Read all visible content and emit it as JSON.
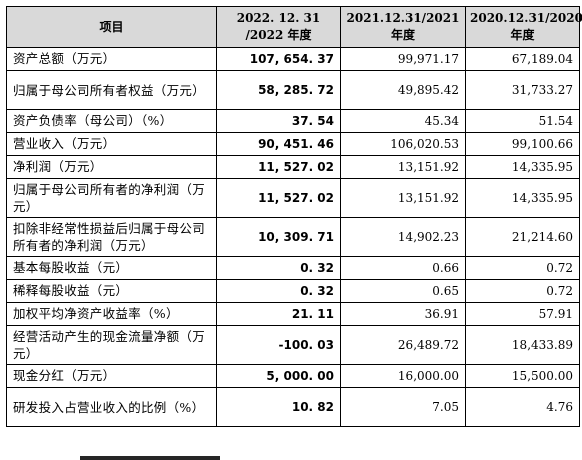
{
  "table": {
    "headers": {
      "item": "项目",
      "col2022": [
        "2022. 12. 31",
        "/2022 年度"
      ],
      "col2021": [
        "2021.12.31/2021",
        "年度"
      ],
      "col2020": [
        "2020.12.31/2020",
        "年度"
      ]
    },
    "rows": [
      {
        "label": "资产总额（万元）",
        "v2022": "107, 654. 37",
        "v2021": "99,971.17",
        "v2020": "67,189.04",
        "tall": false
      },
      {
        "label": "归属于母公司所有者权益（万元）",
        "v2022": "58, 285. 72",
        "v2021": "49,895.42",
        "v2020": "31,733.27",
        "tall": true
      },
      {
        "label": "资产负债率（母公司）（%）",
        "v2022": "37. 54",
        "v2021": "45.34",
        "v2020": "51.54",
        "tall": false
      },
      {
        "label": "营业收入（万元）",
        "v2022": "90, 451. 46",
        "v2021": "106,020.53",
        "v2020": "99,100.66",
        "tall": false
      },
      {
        "label": "净利润（万元）",
        "v2022": "11, 527. 02",
        "v2021": "13,151.92",
        "v2020": "14,335.95",
        "tall": false
      },
      {
        "label": "归属于母公司所有者的净利润（万元）",
        "v2022": "11, 527. 02",
        "v2021": "13,151.92",
        "v2020": "14,335.95",
        "tall": true
      },
      {
        "label": "扣除非经常性损益后归属于母公司所有者的净利润（万元）",
        "v2022": "10, 309. 71",
        "v2021": "14,902.23",
        "v2020": "21,214.60",
        "tall": true
      },
      {
        "label": "基本每股收益（元）",
        "v2022": "0. 32",
        "v2021": "0.66",
        "v2020": "0.72",
        "tall": false
      },
      {
        "label": "稀释每股收益（元）",
        "v2022": "0. 32",
        "v2021": "0.65",
        "v2020": "0.72",
        "tall": false
      },
      {
        "label": "加权平均净资产收益率（%）",
        "v2022": "21. 11",
        "v2021": "36.91",
        "v2020": "57.91",
        "tall": false
      },
      {
        "label": "经营活动产生的现金流量净额（万元）",
        "v2022": "-100. 03",
        "v2021": "26,489.72",
        "v2020": "18,433.89",
        "tall": true
      },
      {
        "label": "现金分红（万元）",
        "v2022": "5, 000. 00",
        "v2021": "16,000.00",
        "v2020": "15,500.00",
        "tall": false
      },
      {
        "label": "研发投入占营业收入的比例（%）",
        "v2022": "10. 82",
        "v2021": "7.05",
        "v2020": "4.76",
        "tall": true
      }
    ]
  }
}
